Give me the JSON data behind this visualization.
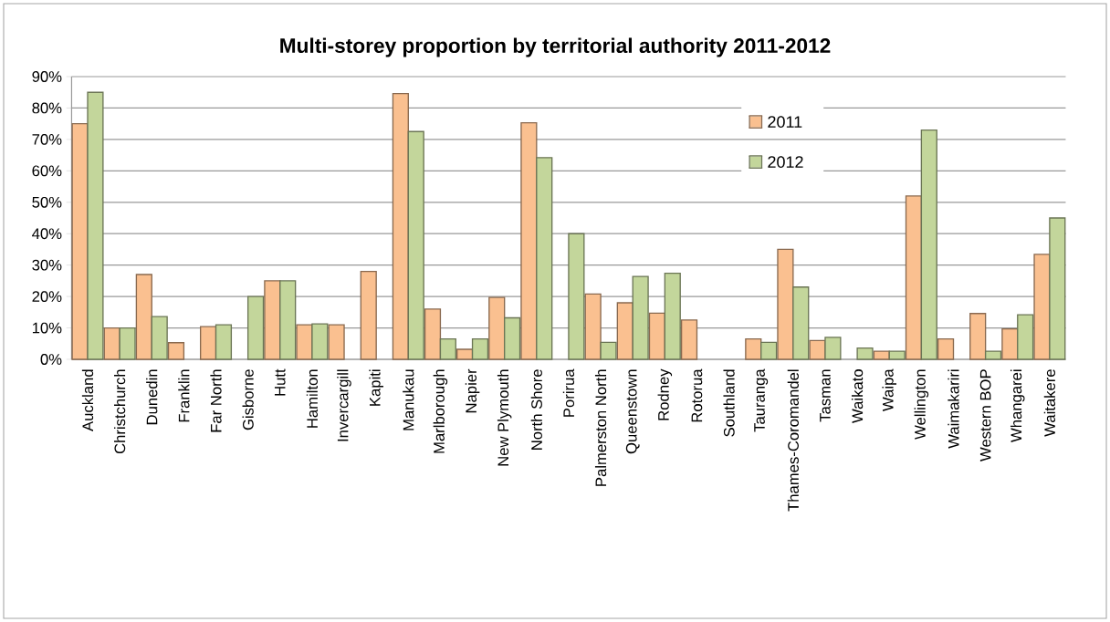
{
  "chart_data": {
    "type": "bar",
    "title": "Multi-storey proportion by territorial authority 2011-2012",
    "categories": [
      "Auckland",
      "Christchurch",
      "Dunedin",
      "Franklin",
      "Far North",
      "Gisborne",
      "Hutt",
      "Hamilton",
      "Invercargill",
      "Kapiti",
      "Manukau",
      "Marlborough",
      "Napier",
      "New Plymouth",
      "North Shore",
      "Porirua",
      "Palmerston North",
      "Queenstown",
      "Rodney",
      "Rotorua",
      "Southland",
      "Tauranga",
      "Thames-Coromandel",
      "Tasman",
      "Waikato",
      "Waipa",
      "Wellington",
      "Waimakariri",
      "Western BOP",
      "Whangarei",
      "Waitakere"
    ],
    "series": [
      {
        "name": "2011",
        "color": "#fac090",
        "values": [
          75,
          10,
          27,
          5.3,
          10.4,
          null,
          25,
          11,
          11,
          28,
          84.6,
          16,
          3.2,
          19.7,
          75.3,
          null,
          20.8,
          18,
          14.7,
          12.5,
          null,
          6.5,
          35,
          6,
          null,
          2.6,
          52,
          6.5,
          14.6,
          9.7,
          33.4
        ]
      },
      {
        "name": "2012",
        "color": "#c3d69b",
        "values": [
          85,
          10,
          13.6,
          null,
          11,
          20,
          25,
          11.3,
          null,
          null,
          72.5,
          6.5,
          6.5,
          13.2,
          64.2,
          40,
          5.4,
          26.4,
          27.4,
          null,
          null,
          5.4,
          23,
          7,
          3.6,
          2.6,
          73,
          null,
          2.6,
          14.2,
          45
        ]
      }
    ],
    "ylim": [
      0,
      90
    ],
    "yticks": [
      {
        "value": 0,
        "label": "0%"
      },
      {
        "value": 10,
        "label": "10%"
      },
      {
        "value": 20,
        "label": "20%"
      },
      {
        "value": 30,
        "label": "30%"
      },
      {
        "value": 40,
        "label": "40%"
      },
      {
        "value": 50,
        "label": "50%"
      },
      {
        "value": 60,
        "label": "60%"
      },
      {
        "value": 70,
        "label": "70%"
      },
      {
        "value": 80,
        "label": "80%"
      },
      {
        "value": 90,
        "label": "90%"
      }
    ],
    "grid": "y",
    "legend": "top right"
  }
}
